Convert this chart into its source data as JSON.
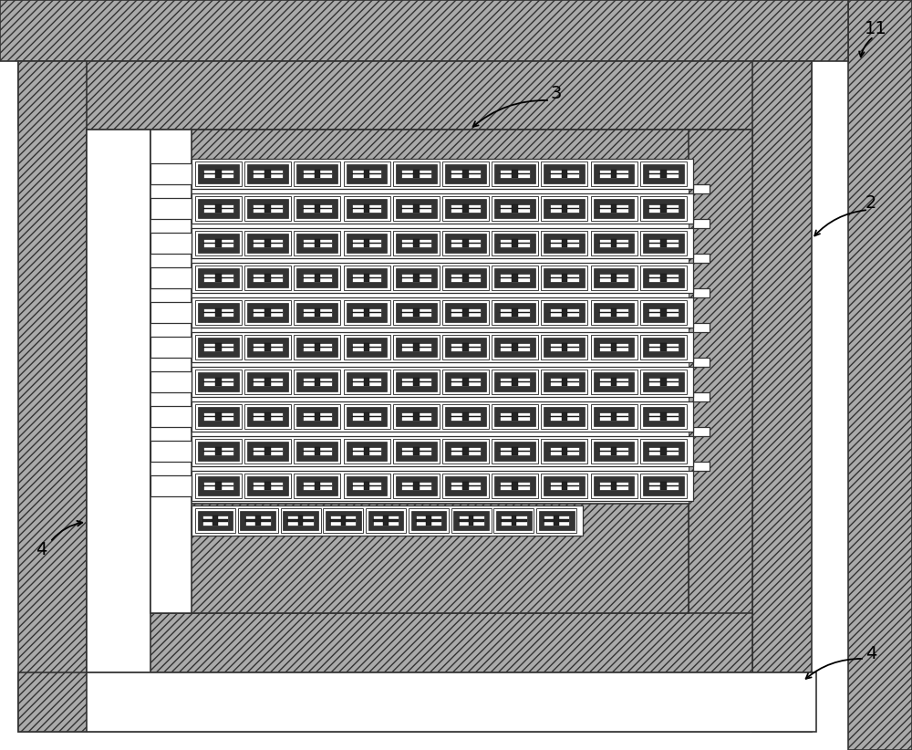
{
  "fig_w": 10.0,
  "fig_h": 8.22,
  "bg": "#ffffff",
  "hatch_fc": "#aaaaaa",
  "hatch_ec": "#333333",
  "hatch": "////",
  "white": "#ffffff",
  "black": "#000000",
  "num_rows": 11,
  "num_cells": 10,
  "label_fs": 14
}
